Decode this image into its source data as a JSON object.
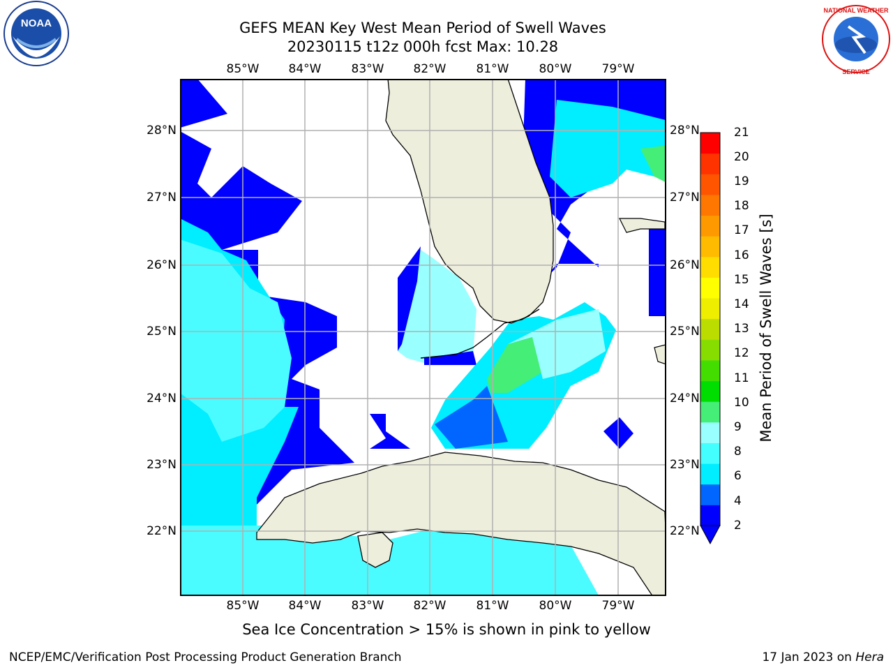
{
  "title": {
    "line1": "GEFS MEAN Key West Mean Period of Swell Waves",
    "line2": "20230115 t12z 000h fcst   Max: 10.28"
  },
  "map": {
    "lon_ticks": [
      "85°W",
      "84°W",
      "83°W",
      "82°W",
      "81°W",
      "80°W",
      "79°W"
    ],
    "lat_ticks": [
      "28°N",
      "27°N",
      "26°N",
      "25°N",
      "24°N",
      "23°N",
      "22°N"
    ],
    "colors": {
      "land": "#eeeedd",
      "coast": "#000000",
      "grid": "#b0b0b0",
      "deep_blue": "#0000ff",
      "blue": "#0066ff",
      "cyan": "#00eeff",
      "light_cyan": "#4afcff",
      "pale_cyan": "#99ffff",
      "green": "#44ee77"
    }
  },
  "colorbar": {
    "title": "Mean Period of Swell Waves [s]",
    "labels": [
      "21",
      "20",
      "19",
      "18",
      "17",
      "16",
      "15",
      "14",
      "13",
      "12",
      "11",
      "10",
      "9",
      "8",
      "6",
      "4",
      "2"
    ],
    "colors": [
      "#0000ff",
      "#0066ff",
      "#00eeff",
      "#44ffff",
      "#99ffff",
      "#44ee77",
      "#00dd00",
      "#44dd00",
      "#88dd00",
      "#bbdd00",
      "#eeee00",
      "#ffff00",
      "#ffdd00",
      "#ffbb00",
      "#ff9900",
      "#ff7700",
      "#ff5500",
      "#ff3300",
      "#ff0000"
    ]
  },
  "note": "Sea Ice Concentration > 15% is shown in pink to yellow",
  "footer": {
    "left": "NCEP/EMC/Verification Post Processing Product Generation Branch",
    "right_prefix": "17 Jan 2023 on ",
    "right_host": "Hera"
  },
  "logos": {
    "left": "NOAA",
    "right": "NATIONAL WEATHER SERVICE"
  }
}
